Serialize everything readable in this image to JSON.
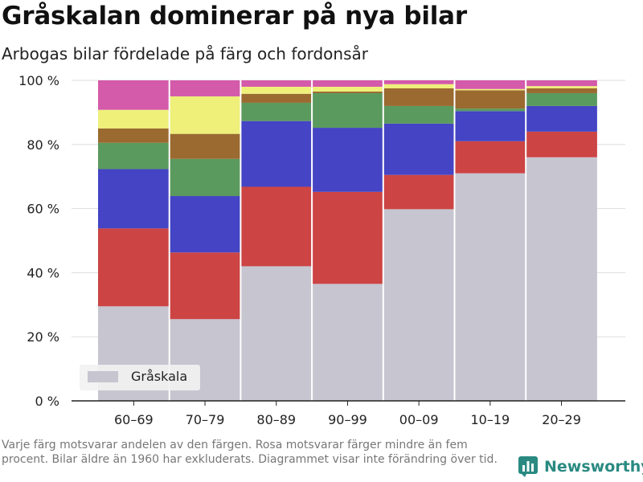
{
  "title": "Gråskalan dominerar på nya bilar",
  "subtitle": "Arbogas bilar fördelade på färg och fordonsår",
  "footnote": "Varje färg motsvarar andelen av den färgen. Rosa motsvarar färger mindre än fem procent. Bilar äldre än 1960 har exkluderats. Diagrammet visar inte förändring över tid.",
  "brand": "Newsworthy",
  "chart_data": {
    "type": "bar",
    "stacked": true,
    "categories": [
      "60–69",
      "70–79",
      "80–89",
      "90–99",
      "00–09",
      "10–19",
      "20–29"
    ],
    "yticks": [
      "0 %",
      "20 %",
      "40 %",
      "60 %",
      "80 %",
      "100 %"
    ],
    "ylim": [
      0,
      100
    ],
    "grid": true,
    "legend": {
      "position": "bottom-left",
      "entries": [
        "Gråskala"
      ]
    },
    "series": [
      {
        "name": "Gråskala",
        "color": "#c6c5d0",
        "values": [
          29.5,
          25.5,
          42,
          36.5,
          59.8,
          71,
          76
        ]
      },
      {
        "color": "#cc4444",
        "values": [
          24.3,
          20.8,
          24.8,
          28.7,
          10.7,
          10,
          8
        ]
      },
      {
        "color": "#4444c4",
        "values": [
          18.5,
          17.6,
          20.5,
          20,
          16,
          9.4,
          8
        ]
      },
      {
        "color": "#5b9a5e",
        "values": [
          8.2,
          11.6,
          5.7,
          10.8,
          5.5,
          0.8,
          4
        ]
      },
      {
        "color": "#9a6a30",
        "values": [
          4.5,
          7.8,
          2.8,
          0.5,
          5.5,
          5.7,
          1.5
        ]
      },
      {
        "color": "#eef07a",
        "values": [
          5.8,
          11.7,
          2.2,
          1.5,
          1.3,
          0.4,
          0.7
        ]
      },
      {
        "color": "#d45aaa",
        "values": [
          9.2,
          5,
          2,
          2,
          1.2,
          2.7,
          1.8
        ]
      }
    ]
  }
}
